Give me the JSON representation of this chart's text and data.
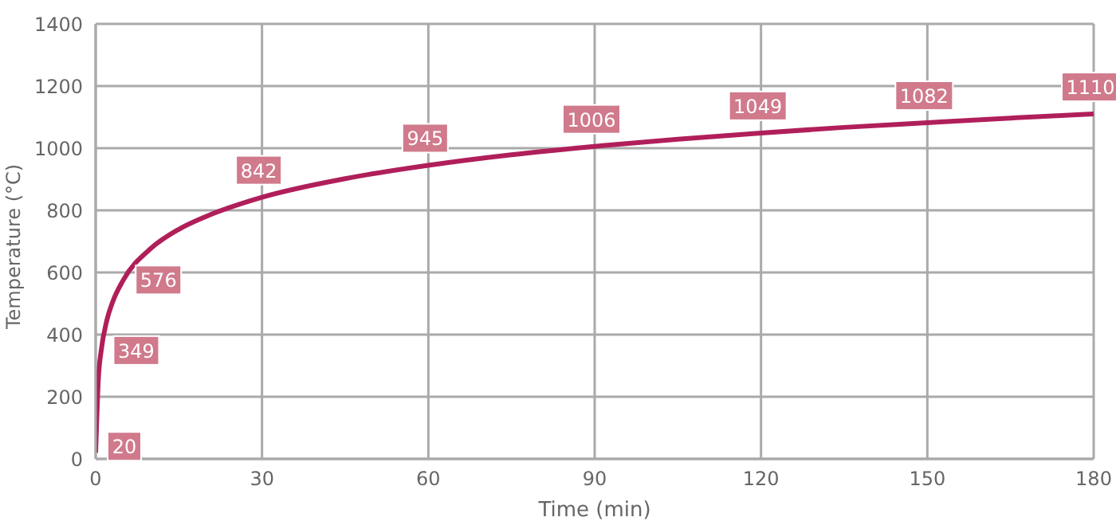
{
  "chart_data": {
    "type": "line",
    "xlabel": "Time (min)",
    "ylabel": "Temperature (°C)",
    "x": [
      0,
      0.5,
      1,
      2,
      3,
      5,
      10,
      15,
      20,
      30,
      45,
      60,
      75,
      90,
      105,
      120,
      135,
      150,
      165,
      180
    ],
    "series": [
      {
        "color": "#b01f5a",
        "values": [
          20,
          261,
          349,
          445,
          502,
          576,
          678,
          739,
          781,
          842,
          902,
          945,
          979,
          1006,
          1029,
          1049,
          1067,
          1082,
          1097,
          1110
        ],
        "value_labels": [
          "20",
          null,
          "349",
          null,
          null,
          "576",
          null,
          null,
          null,
          "842",
          null,
          "945",
          null,
          "1006",
          null,
          "1049",
          null,
          "1082",
          null,
          "1110"
        ]
      }
    ],
    "xlim": [
      0,
      180
    ],
    "xticks": [
      0,
      30,
      60,
      90,
      120,
      150,
      180
    ],
    "ylim": [
      0,
      1400
    ],
    "yticks": [
      0,
      200,
      400,
      600,
      800,
      1000,
      1200,
      1400
    ],
    "grid": true,
    "legend": false,
    "marker": "none",
    "line_style": "solid"
  }
}
